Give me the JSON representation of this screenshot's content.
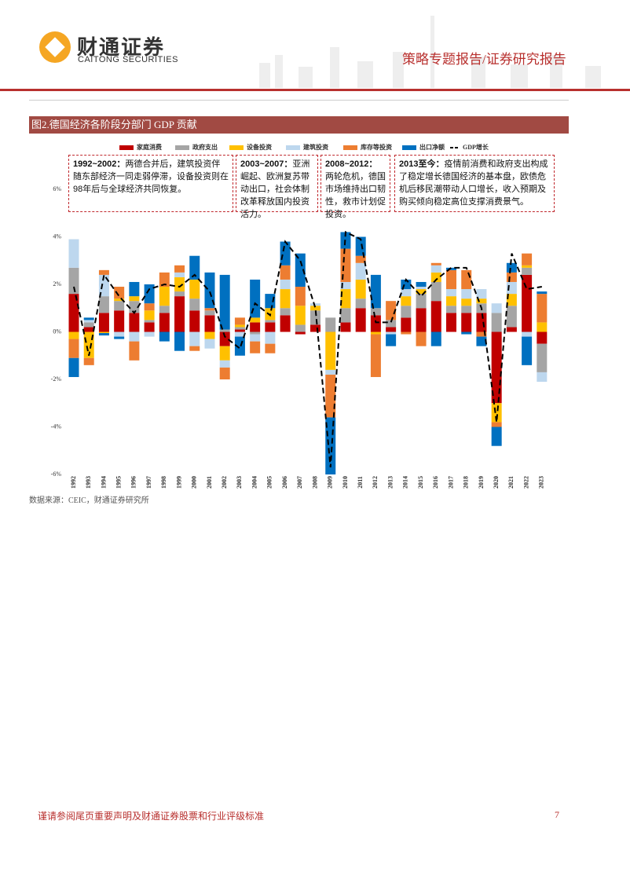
{
  "header": {
    "logo_cn": "财通证券",
    "logo_en": "CAITONG SECURITIES",
    "report_type": "策略专题报告/证券研究报告"
  },
  "figure_title": "图2.德国经济各阶段分部门 GDP 贡献",
  "chart_data": {
    "type": "bar",
    "stacked": true,
    "categories": [
      "1992",
      "1993",
      "1994",
      "1995",
      "1996",
      "1997",
      "1998",
      "1999",
      "2000",
      "2001",
      "2002",
      "2003",
      "2004",
      "2005",
      "2006",
      "2007",
      "2008",
      "2009",
      "2010",
      "2011",
      "2012",
      "2013",
      "2014",
      "2015",
      "2016",
      "2017",
      "2018",
      "2019",
      "2020",
      "2021",
      "2022",
      "2023"
    ],
    "series": [
      {
        "name": "家庭消费",
        "color": "#c00000",
        "type": "bar",
        "values": [
          1.6,
          0.2,
          0.8,
          0.9,
          0.8,
          0.4,
          0.8,
          1.5,
          0.9,
          0.7,
          -0.6,
          0.1,
          0.4,
          0.4,
          0.7,
          -0.1,
          0.3,
          0.0,
          0.4,
          1.0,
          0.7,
          0.2,
          0.6,
          1.0,
          1.3,
          0.8,
          0.8,
          0.8,
          -3.0,
          0.2,
          2.4,
          -0.5
        ]
      },
      {
        "name": "政府支出",
        "color": "#a5a5a5",
        "type": "bar",
        "values": [
          1.1,
          0.2,
          0.7,
          0.4,
          0.5,
          0.1,
          0.3,
          0.2,
          0.5,
          0.2,
          0.1,
          0.1,
          -0.1,
          0.1,
          0.3,
          0.3,
          0.6,
          0.6,
          0.6,
          0.4,
          0.3,
          0.3,
          0.5,
          0.6,
          0.8,
          0.3,
          0.3,
          0.4,
          0.8,
          0.9,
          0.3,
          -1.2
        ]
      },
      {
        "name": "设备投资",
        "color": "#ffc000",
        "type": "bar",
        "values": [
          -0.3,
          -1.1,
          -0.05,
          0.1,
          0.2,
          0.4,
          0.8,
          0.6,
          0.8,
          -0.3,
          -0.6,
          0.1,
          0.2,
          0.5,
          0.8,
          0.8,
          0.2,
          -1.6,
          0.8,
          0.8,
          -0.1,
          0.0,
          0.4,
          0.2,
          0.4,
          0.4,
          0.3,
          0.2,
          -0.8,
          0.5,
          0.1,
          0.4
        ]
      },
      {
        "name": "建筑投资",
        "color": "#bdd7ee",
        "type": "bar",
        "values": [
          1.2,
          0.1,
          0.9,
          -0.2,
          -0.4,
          -0.2,
          0.0,
          0.2,
          -0.6,
          -0.4,
          -0.3,
          -0.2,
          -0.3,
          -0.5,
          0.4,
          0.0,
          0.1,
          -0.2,
          0.3,
          0.7,
          0.0,
          -0.1,
          0.3,
          0.1,
          0.3,
          0.3,
          0.4,
          0.4,
          0.4,
          0.5,
          -0.2,
          -0.4
        ]
      },
      {
        "name": "库存等投资",
        "color": "#ed7d31",
        "type": "bar",
        "values": [
          -0.8,
          -0.3,
          0.2,
          0.5,
          -0.8,
          0.3,
          0.6,
          0.3,
          -0.2,
          0.1,
          -0.5,
          0.3,
          -0.5,
          -0.4,
          0.6,
          0.8,
          0.0,
          -1.8,
          1.4,
          0.3,
          -1.8,
          0.8,
          -0.1,
          -0.6,
          0.1,
          0.8,
          0.8,
          -0.2,
          -0.2,
          0.4,
          0.5,
          1.2
        ]
      },
      {
        "name": "出口净额",
        "color": "#0070c0",
        "type": "bar",
        "values": [
          -0.8,
          0.1,
          -0.1,
          -0.1,
          0.6,
          0.8,
          -0.4,
          -0.8,
          1.0,
          1.5,
          2.3,
          -0.8,
          1.6,
          0.6,
          1.0,
          1.4,
          0.0,
          -2.4,
          0.7,
          0.8,
          1.4,
          -0.5,
          0.4,
          0.2,
          -0.6,
          0.1,
          -0.1,
          -0.4,
          -0.8,
          0.4,
          -1.2,
          0.1
        ]
      },
      {
        "name": "GDP增长",
        "color": "#000000",
        "type": "line",
        "values": [
          1.9,
          -1.0,
          2.4,
          1.5,
          0.8,
          1.8,
          2.0,
          1.9,
          2.4,
          1.7,
          -0.2,
          -0.7,
          1.2,
          0.7,
          3.8,
          3.0,
          1.0,
          -5.7,
          4.2,
          3.9,
          0.4,
          0.4,
          2.2,
          1.5,
          2.2,
          2.7,
          2.7,
          1.0,
          -3.8,
          3.3,
          1.8,
          1.9
        ]
      }
    ],
    "ylim": [
      -6,
      6
    ],
    "yticks": [
      {
        "value": -6,
        "label": "-6%"
      },
      {
        "value": -4,
        "label": "-4%"
      },
      {
        "value": -2,
        "label": "-2%"
      },
      {
        "value": 0,
        "label": "0%"
      },
      {
        "value": 2,
        "label": "2%"
      },
      {
        "value": 4,
        "label": "4%"
      },
      {
        "value": 6,
        "label": "6%"
      }
    ],
    "grid": false,
    "annotations": [
      {
        "head": "1992~2002：",
        "text": "两德合并后，建筑投资伴随东部经济一同走弱停滞，设备投资则在98年后与全球经济共同恢复。"
      },
      {
        "head": "2003~2007：",
        "text": "亚洲崛起、欧洲复苏带动出口，社会体制改革释放国内投资活力。"
      },
      {
        "head": "2008~2012：",
        "text": "两轮危机，德国市场维持出口韧性，救市计划促投资。"
      },
      {
        "head": "2013至今：",
        "text": "疫情前消费和政府支出构成了稳定增长德国经济的基本盘，欧债危机后移民潮带动人口增长，收入预期及购买倾向稳定高位支撑消费景气。"
      }
    ]
  },
  "source": "数据来源：CEIC，财通证券研究所",
  "footer": {
    "disclaimer": "谨请参阅尾页重要声明及财通证券股票和行业评级标准",
    "page": "7"
  }
}
